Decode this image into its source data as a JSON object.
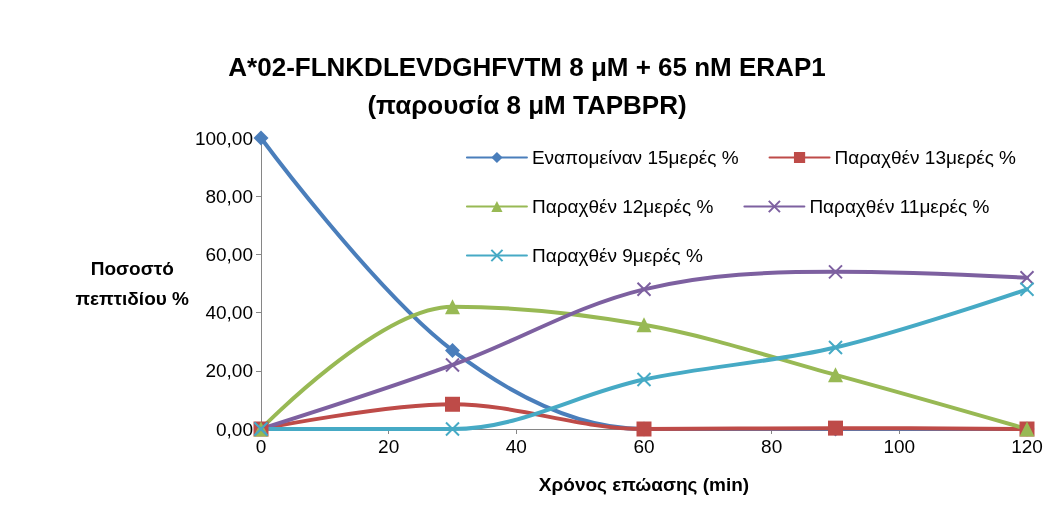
{
  "chart_data": {
    "type": "line",
    "title": "A*02-FLNKDLEVDGHFVTM 8 μM + 65 nM ERAP1\n(παρουσία 8 μM TAPBPR)",
    "xlabel": "Χρόνος επώασης (min)",
    "ylabel": "Ποσοστό\nπεπτιδίου %",
    "x": [
      0,
      30,
      60,
      90,
      120
    ],
    "xlim": [
      0,
      120
    ],
    "xticks": [
      0,
      20,
      40,
      60,
      80,
      100,
      120
    ],
    "ylim": [
      0,
      100
    ],
    "yticks": [
      {
        "value": 0,
        "label": "0,00"
      },
      {
        "value": 20,
        "label": "20,00"
      },
      {
        "value": 40,
        "label": "40,00"
      },
      {
        "value": 60,
        "label": "60,00"
      },
      {
        "value": 80,
        "label": "80,00"
      },
      {
        "value": 100,
        "label": "100,00"
      }
    ],
    "grid": false,
    "legend": "top right",
    "series": [
      {
        "name": "Εναπομείναν 15μερές %",
        "color": "#4a7ebb",
        "marker": "diamond",
        "values": [
          100,
          27,
          0,
          0,
          0
        ]
      },
      {
        "name": "Παραχθέν 13μερές %",
        "color": "#be4b48",
        "marker": "square",
        "values": [
          0,
          8.5,
          0,
          0.3,
          0
        ]
      },
      {
        "name": "Παραχθέν 12μερές %",
        "color": "#98b954",
        "marker": "triangle",
        "values": [
          0,
          42,
          35.8,
          18.6,
          0
        ]
      },
      {
        "name": "Παραχθέν 11μερές %",
        "color": "#7d60a0",
        "marker": "cross",
        "values": [
          0,
          22,
          48,
          54,
          52
        ]
      },
      {
        "name": "Παραχθέν 9μερές %",
        "color": "#46aac5",
        "marker": "cross",
        "values": [
          0,
          0,
          17,
          28,
          48
        ]
      }
    ]
  }
}
